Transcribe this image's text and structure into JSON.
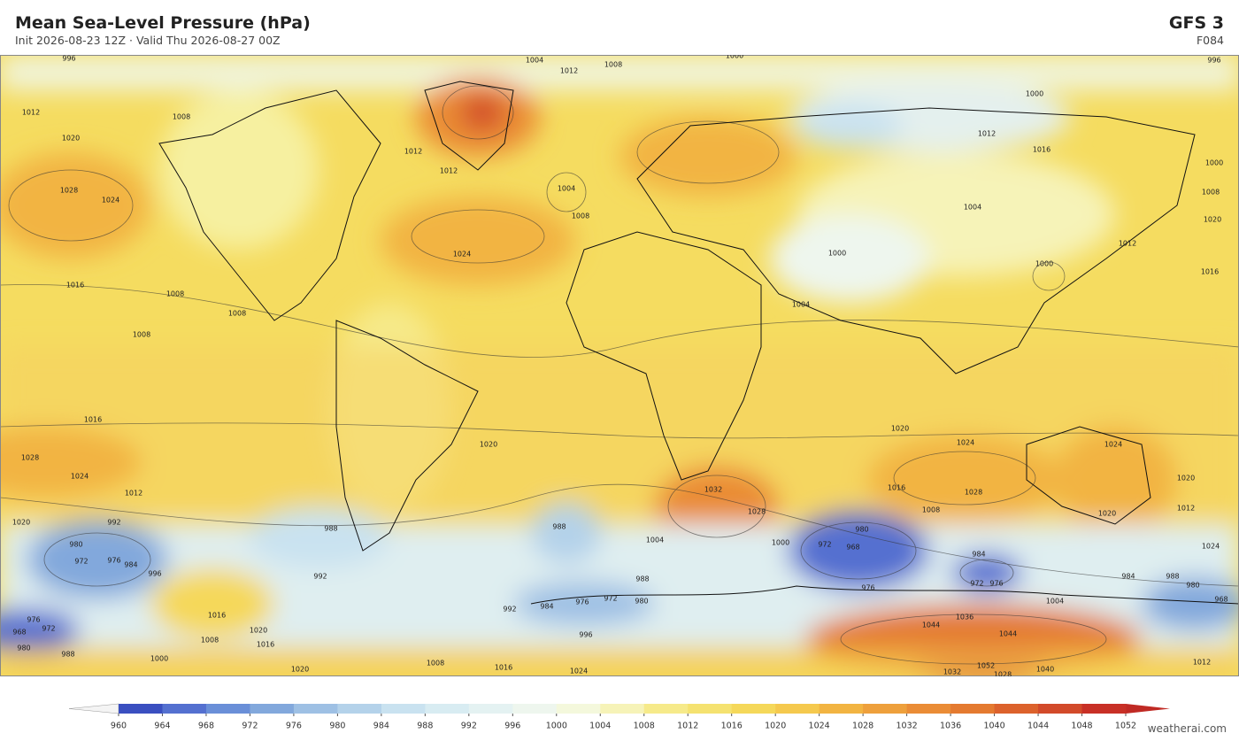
{
  "header": {
    "title": "Mean Sea-Level Pressure  (hPa)",
    "subtitle": "Init 2026-08-23 12Z  ·  Valid Thu 2026-08-27 00Z",
    "model": "GFS  3",
    "forecast_hour": "F084"
  },
  "map": {
    "contour_labels": [
      996,
      1004,
      1000,
      996,
      1012,
      1008,
      1012,
      1020,
      1008,
      1000,
      1012,
      1016,
      1000,
      1008,
      1012,
      1012,
      1004,
      1008,
      1004,
      1028,
      1024,
      1024,
      1016,
      1008,
      1008,
      1008,
      1020,
      1012,
      1016,
      1000,
      1000,
      1004,
      1016,
      1020,
      1024,
      1024,
      1028,
      1024,
      1020,
      1012,
      1028,
      1016,
      1008,
      1032,
      1028,
      1020,
      1020,
      1012,
      1024,
      1004,
      1000,
      1020,
      992,
      980,
      972,
      976,
      984,
      996,
      988,
      992,
      988,
      992,
      980,
      972,
      968,
      984,
      972,
      976,
      976,
      984,
      988,
      980,
      968,
      988,
      980,
      972,
      976,
      984,
      1004,
      1036,
      1044,
      1044,
      1052,
      1032,
      1040,
      1012,
      976,
      968,
      972,
      980,
      988,
      1016,
      1020,
      1008,
      1016,
      1000,
      1008,
      1016,
      1020,
      1024,
      996,
      1028
    ]
  },
  "colorbar": {
    "ticks": [
      960,
      964,
      968,
      972,
      976,
      980,
      984,
      988,
      992,
      996,
      1000,
      1004,
      1008,
      1012,
      1016,
      1020,
      1024,
      1028,
      1032,
      1036,
      1040,
      1044,
      1048,
      1052
    ],
    "colors": [
      "#3a4fc0",
      "#5470d0",
      "#6a8fd8",
      "#82a8dc",
      "#9ec0e4",
      "#b4d2ea",
      "#c9e2f0",
      "#d8ecf2",
      "#e4f2f2",
      "#eef6ee",
      "#f4f8dc",
      "#f6f3b8",
      "#f6ea8a",
      "#f5e270",
      "#f5d85a",
      "#f5c94e",
      "#f2b442",
      "#eea03c",
      "#ea8c36",
      "#e47a30",
      "#dc622c",
      "#d24a2a",
      "#c83026"
    ],
    "under_color": "#f4f4f4",
    "over_color": "#c02a24"
  },
  "footer": {
    "credit": "weatherai.com"
  }
}
